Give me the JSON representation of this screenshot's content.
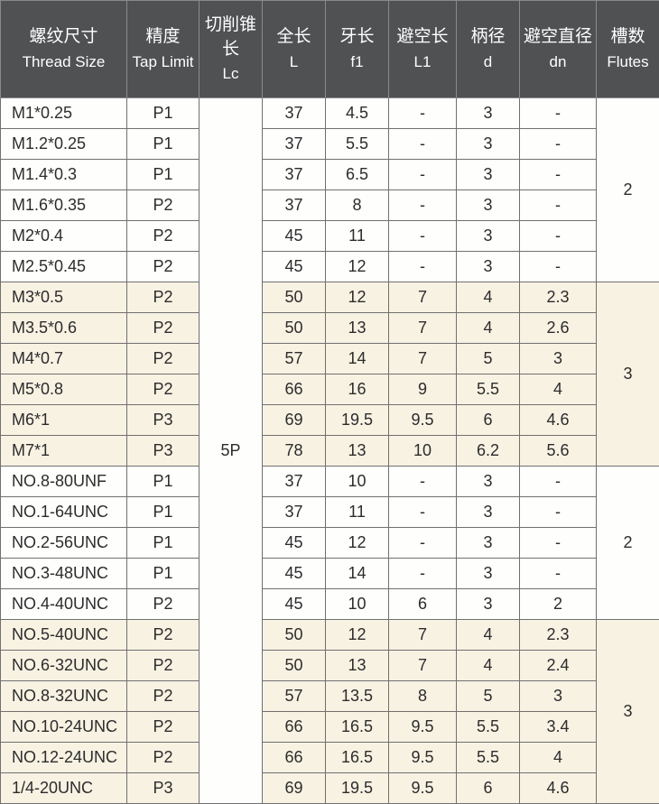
{
  "colors": {
    "header_bg": "#4f5152",
    "header_text": "#ffffff",
    "header_border": "#888a8b",
    "cell_border": "#707070",
    "band_a_bg": "#fefefd",
    "band_b_bg": "#f8f2e3",
    "cell_text": "#2c2c2c"
  },
  "typography": {
    "header_cn_fontsize_pt": 14,
    "header_en_fontsize_pt": 13,
    "cell_fontsize_pt": 14
  },
  "columns": [
    {
      "cn": "螺纹尺寸",
      "en": "Thread Size",
      "class": "c-size"
    },
    {
      "cn": "精度",
      "en": "Tap Limit",
      "class": "c-limit"
    },
    {
      "cn": "切削锥长",
      "en": "Lc",
      "class": "c-lc"
    },
    {
      "cn": "全长",
      "en": "L",
      "class": "c-l"
    },
    {
      "cn": "牙长",
      "en": "f1",
      "class": "c-f1"
    },
    {
      "cn": "避空长",
      "en": "L1",
      "class": "c-l1"
    },
    {
      "cn": "柄径",
      "en": "d",
      "class": "c-d"
    },
    {
      "cn": "避空直径",
      "en": "dn",
      "class": "c-dn"
    },
    {
      "cn": "槽数",
      "en": "Flutes",
      "class": "c-flutes"
    }
  ],
  "lc_value": "5P",
  "groups": [
    {
      "band": "a",
      "flutes": "2",
      "rows": [
        {
          "size": "M1*0.25",
          "limit": "P1",
          "l": "37",
          "f1": "4.5",
          "l1": "-",
          "d": "3",
          "dn": "-"
        },
        {
          "size": "M1.2*0.25",
          "limit": "P1",
          "l": "37",
          "f1": "5.5",
          "l1": "-",
          "d": "3",
          "dn": "-"
        },
        {
          "size": "M1.4*0.3",
          "limit": "P1",
          "l": "37",
          "f1": "6.5",
          "l1": "-",
          "d": "3",
          "dn": "-"
        },
        {
          "size": "M1.6*0.35",
          "limit": "P2",
          "l": "37",
          "f1": "8",
          "l1": "-",
          "d": "3",
          "dn": "-"
        },
        {
          "size": "M2*0.4",
          "limit": "P2",
          "l": "45",
          "f1": "11",
          "l1": "-",
          "d": "3",
          "dn": "-"
        },
        {
          "size": "M2.5*0.45",
          "limit": "P2",
          "l": "45",
          "f1": "12",
          "l1": "-",
          "d": "3",
          "dn": "-"
        }
      ]
    },
    {
      "band": "b",
      "flutes": "3",
      "rows": [
        {
          "size": "M3*0.5",
          "limit": "P2",
          "l": "50",
          "f1": "12",
          "l1": "7",
          "d": "4",
          "dn": "2.3"
        },
        {
          "size": "M3.5*0.6",
          "limit": "P2",
          "l": "50",
          "f1": "13",
          "l1": "7",
          "d": "4",
          "dn": "2.6"
        },
        {
          "size": "M4*0.7",
          "limit": "P2",
          "l": "57",
          "f1": "14",
          "l1": "7",
          "d": "5",
          "dn": "3"
        },
        {
          "size": "M5*0.8",
          "limit": "P2",
          "l": "66",
          "f1": "16",
          "l1": "9",
          "d": "5.5",
          "dn": "4"
        },
        {
          "size": "M6*1",
          "limit": "P3",
          "l": "69",
          "f1": "19.5",
          "l1": "9.5",
          "d": "6",
          "dn": "4.6"
        },
        {
          "size": "M7*1",
          "limit": "P3",
          "l": "78",
          "f1": "13",
          "l1": "10",
          "d": "6.2",
          "dn": "5.6"
        }
      ]
    },
    {
      "band": "a",
      "flutes": "2",
      "rows": [
        {
          "size": "NO.8-80UNF",
          "limit": "P1",
          "l": "37",
          "f1": "10",
          "l1": "-",
          "d": "3",
          "dn": "-"
        },
        {
          "size": "NO.1-64UNC",
          "limit": "P1",
          "l": "37",
          "f1": "11",
          "l1": "-",
          "d": "3",
          "dn": "-"
        },
        {
          "size": "NO.2-56UNC",
          "limit": "P1",
          "l": "45",
          "f1": "12",
          "l1": "-",
          "d": "3",
          "dn": "-"
        },
        {
          "size": "NO.3-48UNC",
          "limit": "P1",
          "l": "45",
          "f1": "14",
          "l1": "-",
          "d": "3",
          "dn": "-"
        },
        {
          "size": "NO.4-40UNC",
          "limit": "P2",
          "l": "45",
          "f1": "10",
          "l1": "6",
          "d": "3",
          "dn": "2"
        }
      ]
    },
    {
      "band": "b",
      "flutes": "3",
      "rows": [
        {
          "size": "NO.5-40UNC",
          "limit": "P2",
          "l": "50",
          "f1": "12",
          "l1": "7",
          "d": "4",
          "dn": "2.3"
        },
        {
          "size": "NO.6-32UNC",
          "limit": "P2",
          "l": "50",
          "f1": "13",
          "l1": "7",
          "d": "4",
          "dn": "2.4"
        },
        {
          "size": "NO.8-32UNC",
          "limit": "P2",
          "l": "57",
          "f1": "13.5",
          "l1": "8",
          "d": "5",
          "dn": "3"
        },
        {
          "size": "NO.10-24UNC",
          "limit": "P2",
          "l": "66",
          "f1": "16.5",
          "l1": "9.5",
          "d": "5.5",
          "dn": "3.4"
        },
        {
          "size": "NO.12-24UNC",
          "limit": "P2",
          "l": "66",
          "f1": "16.5",
          "l1": "9.5",
          "d": "5.5",
          "dn": "4"
        },
        {
          "size": "1/4-20UNC",
          "limit": "P3",
          "l": "69",
          "f1": "19.5",
          "l1": "9.5",
          "d": "6",
          "dn": "4.6"
        }
      ]
    }
  ]
}
